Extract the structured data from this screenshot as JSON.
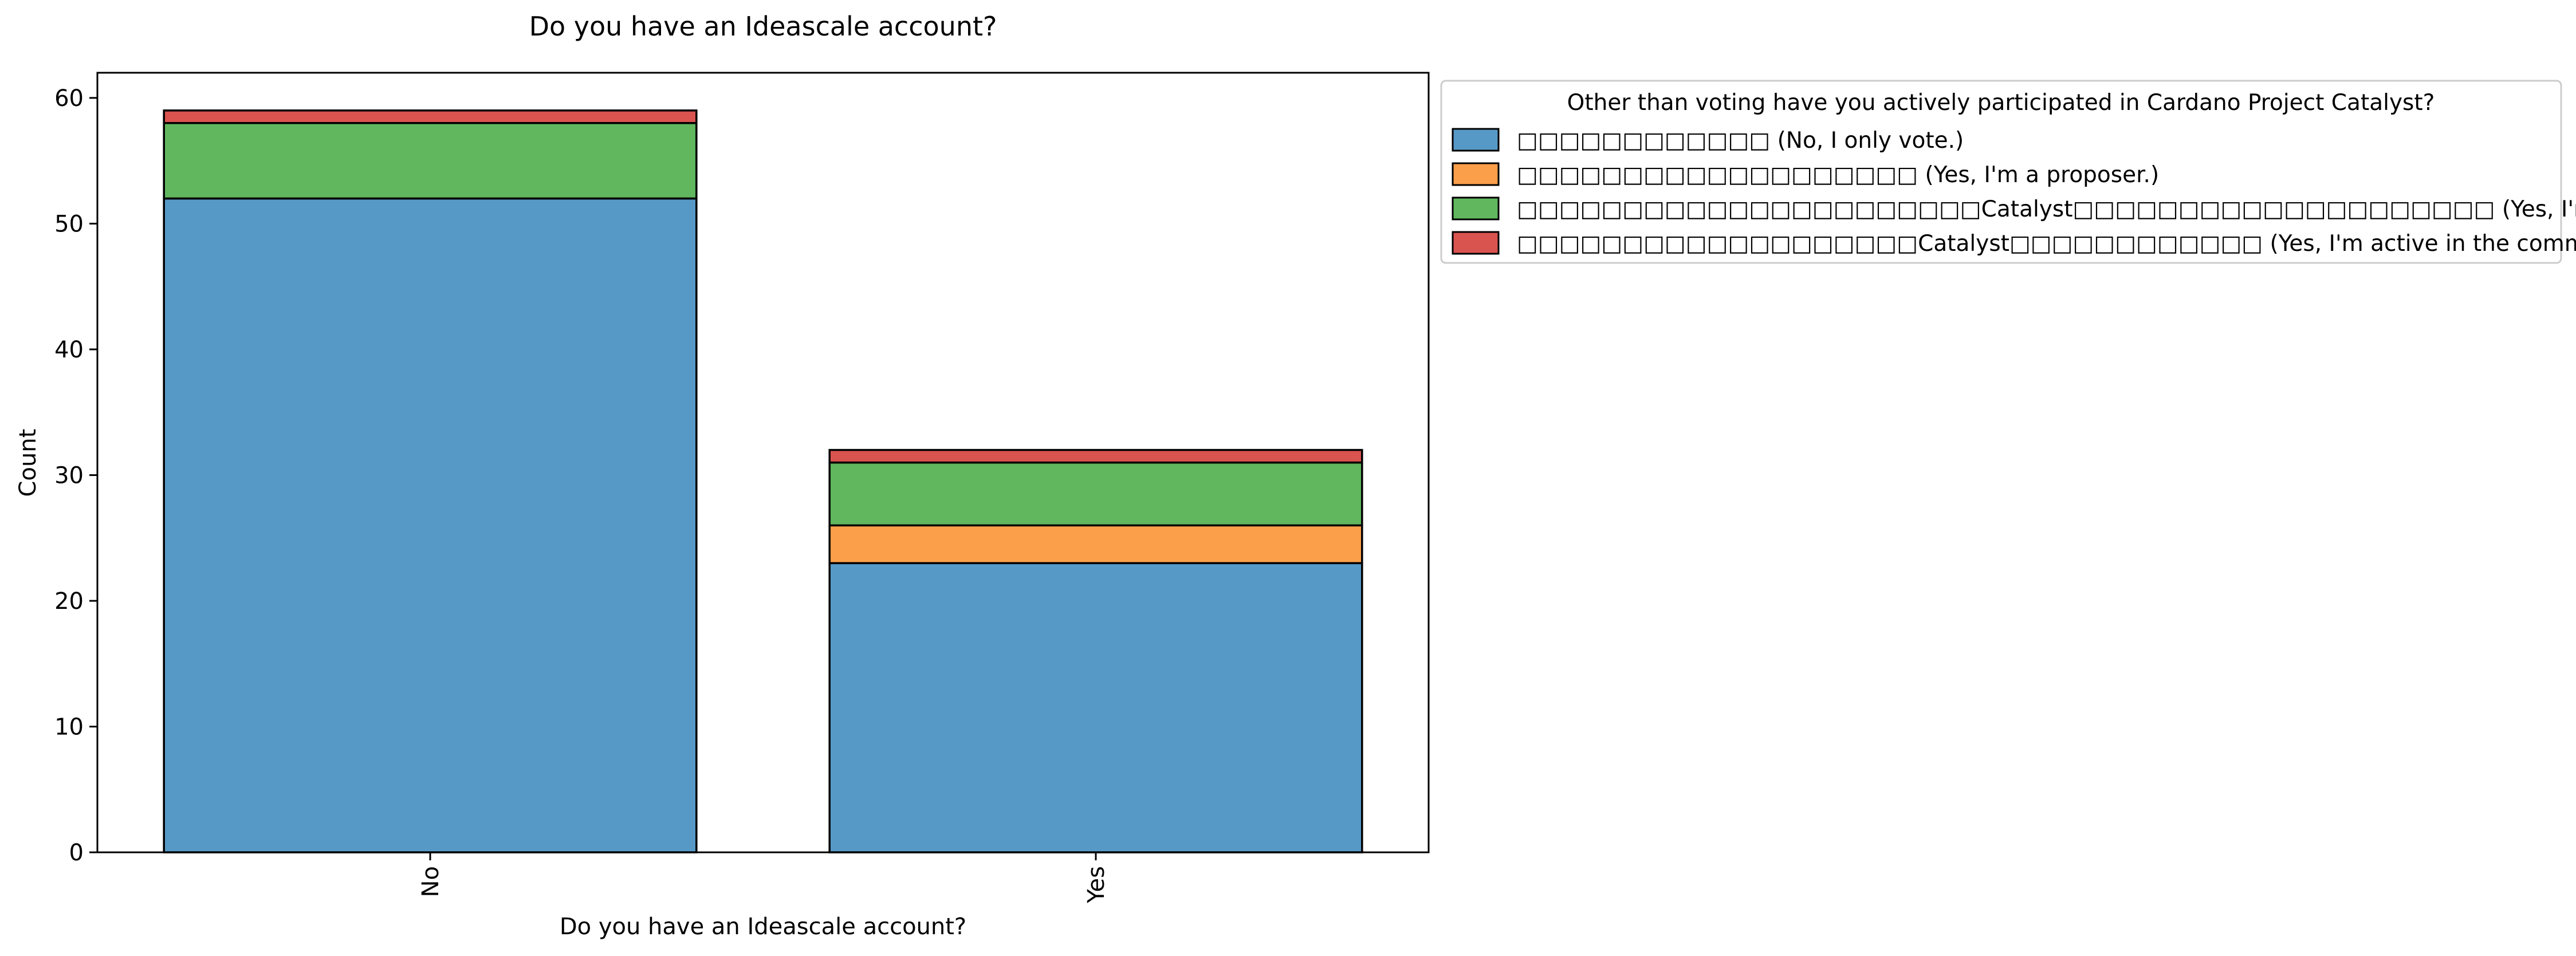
{
  "chart_data": {
    "type": "bar",
    "stacked": true,
    "title": "Do you have an Ideascale account?",
    "xlabel": "Do you have an Ideascale account?",
    "ylabel": "Count",
    "categories": [
      "No",
      "Yes"
    ],
    "ylim": [
      0,
      62
    ],
    "yticks": [
      0,
      10,
      20,
      30,
      40,
      50,
      60
    ],
    "grid": false,
    "legend": {
      "title": "Other than voting have you actively participated in Cardano Project Catalyst?",
      "placement": "outside-upper-right"
    },
    "series": [
      {
        "name": "□□□□□□□□□□□□ (No, I only vote.)",
        "color": "#5799c6",
        "values": [
          52,
          23
        ]
      },
      {
        "name": "□□□□□□□□□□□□□□□□□□□ (Yes, I'm a proposer.)",
        "color": "#fb9f4a",
        "values": [
          0,
          3
        ]
      },
      {
        "name": "□□□□□□□□□□□□□□□□□□□□□□Catalyst□□□□□□□□□□□□□□□□□□□□ (Yes, I'm a lurker in the community)",
        "color": "#60b75e",
        "values": [
          6,
          5
        ]
      },
      {
        "name": "□□□□□□□□□□□□□□□□□□□Catalyst□□□□□□□□□□□□ (Yes, I'm active in the community.)",
        "color": "#d9534f",
        "values": [
          1,
          1
        ]
      }
    ]
  }
}
